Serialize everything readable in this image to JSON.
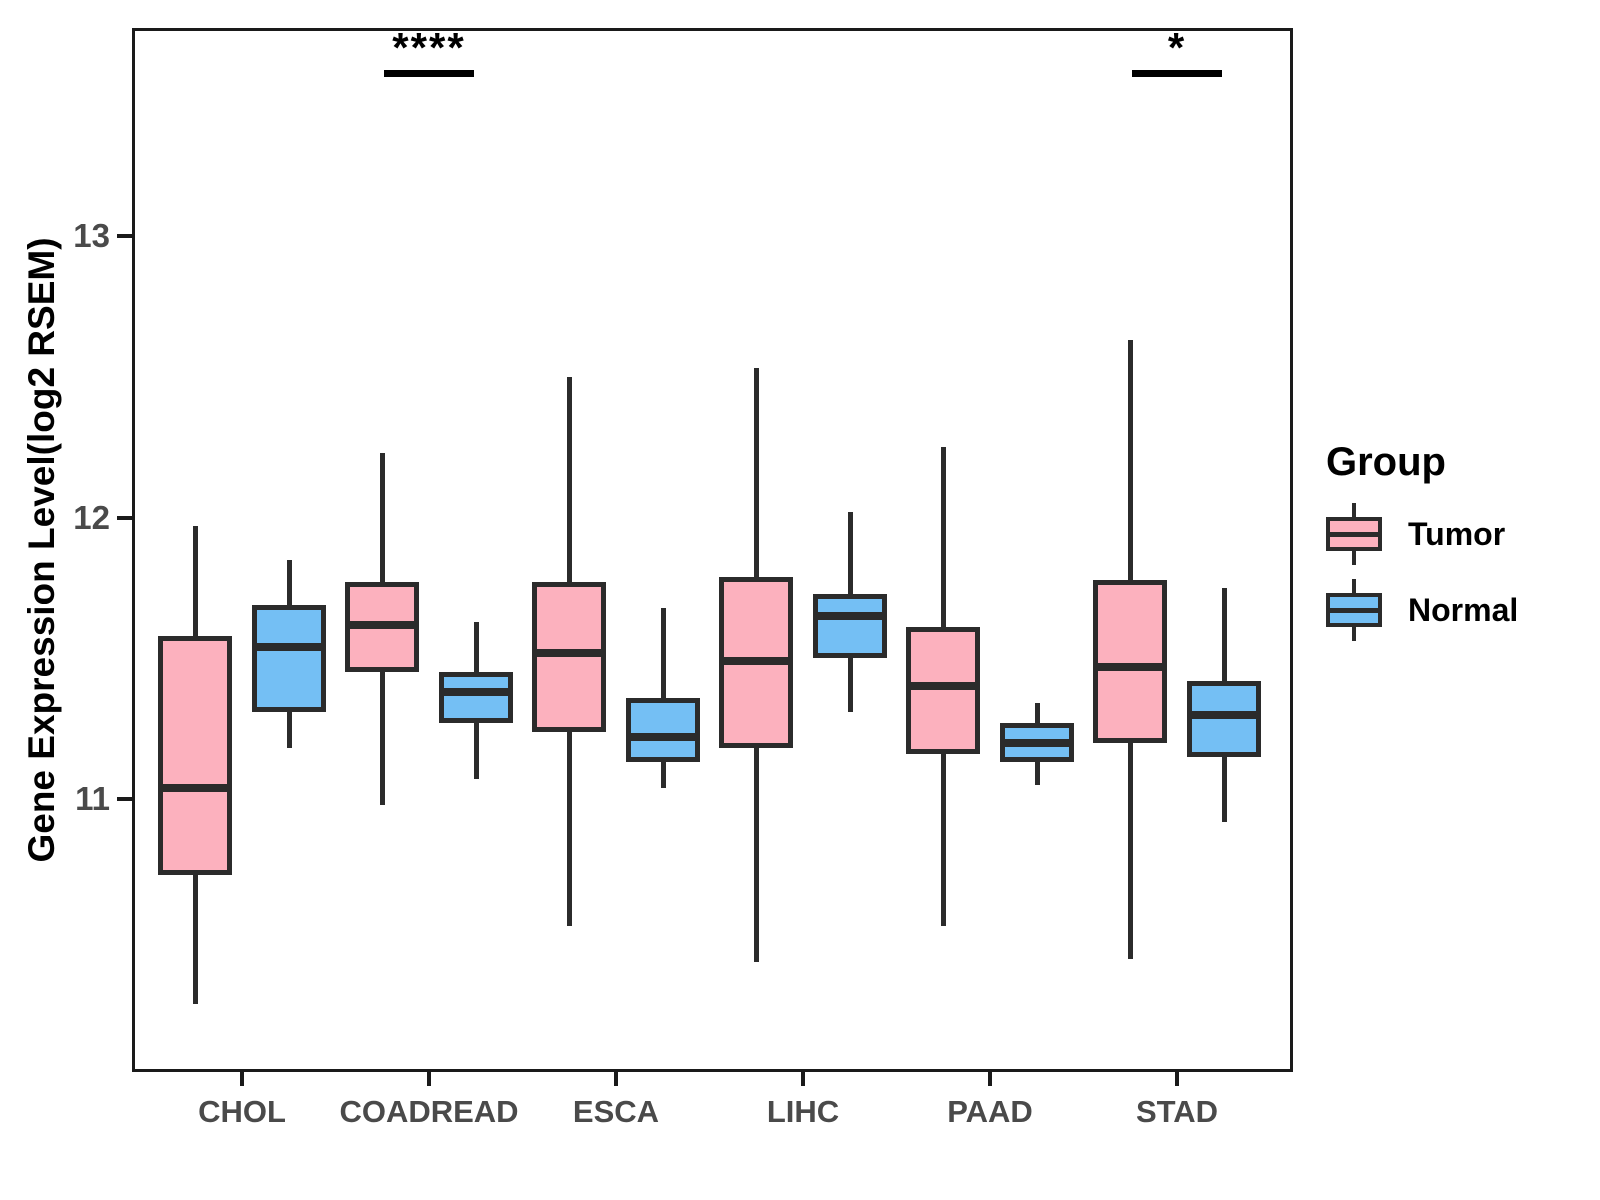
{
  "chart_data": {
    "type": "boxplot",
    "title": "",
    "xlabel": "",
    "ylabel": "Gene Expression Level(log2 RSEM)",
    "ylim": [
      10.03,
      13.74
    ],
    "yticks": [
      "11",
      "12",
      "13"
    ],
    "ytick_values": [
      11,
      12,
      13
    ],
    "categories": [
      "CHOL",
      "COADREAD",
      "ESCA",
      "LIHC",
      "PAAD",
      "STAD"
    ],
    "grid": "off",
    "legend_position": "right",
    "legend_title": "Group",
    "series": [
      {
        "name": "Tumor",
        "color": "#FCB1BE",
        "boxes": [
          {
            "whisker_low": 10.27,
            "q1": 10.73,
            "median": 11.04,
            "q3": 11.58,
            "whisker_high": 11.97
          },
          {
            "whisker_low": 10.98,
            "q1": 11.45,
            "median": 11.62,
            "q3": 11.77,
            "whisker_high": 12.23
          },
          {
            "whisker_low": 10.55,
            "q1": 11.24,
            "median": 11.52,
            "q3": 11.77,
            "whisker_high": 12.5
          },
          {
            "whisker_low": 10.42,
            "q1": 11.18,
            "median": 11.49,
            "q3": 11.79,
            "whisker_high": 12.53
          },
          {
            "whisker_low": 10.55,
            "q1": 11.16,
            "median": 11.4,
            "q3": 11.61,
            "whisker_high": 12.25
          },
          {
            "whisker_low": 10.43,
            "q1": 11.2,
            "median": 11.47,
            "q3": 11.78,
            "whisker_high": 12.63
          }
        ]
      },
      {
        "name": "Normal",
        "color": "#74BFF4",
        "boxes": [
          {
            "whisker_low": 11.18,
            "q1": 11.31,
            "median": 11.54,
            "q3": 11.69,
            "whisker_high": 11.85
          },
          {
            "whisker_low": 11.07,
            "q1": 11.27,
            "median": 11.38,
            "q3": 11.45,
            "whisker_high": 11.63
          },
          {
            "whisker_low": 11.04,
            "q1": 11.13,
            "median": 11.22,
            "q3": 11.36,
            "whisker_high": 11.68
          },
          {
            "whisker_low": 11.31,
            "q1": 11.5,
            "median": 11.65,
            "q3": 11.73,
            "whisker_high": 12.02
          },
          {
            "whisker_low": 11.05,
            "q1": 11.13,
            "median": 11.2,
            "q3": 11.27,
            "whisker_high": 11.34
          },
          {
            "whisker_low": 10.92,
            "q1": 11.15,
            "median": 11.3,
            "q3": 11.42,
            "whisker_high": 11.75
          }
        ]
      }
    ],
    "annotations": [
      {
        "category": "COADREAD",
        "label": "****"
      },
      {
        "category": "STAD",
        "label": "*"
      }
    ]
  },
  "legend": {
    "title": "Group",
    "items": [
      {
        "label": "Tumor",
        "color": "#FCB1BE"
      },
      {
        "label": "Normal",
        "color": "#74BFF4"
      }
    ]
  },
  "colors": {
    "tumor_fill": "#FCB1BE",
    "normal_fill": "#74BFF4",
    "stroke": "#2b2b2b",
    "axis_text": "#4a4a4a",
    "panel_border": "#1a1a1a"
  }
}
